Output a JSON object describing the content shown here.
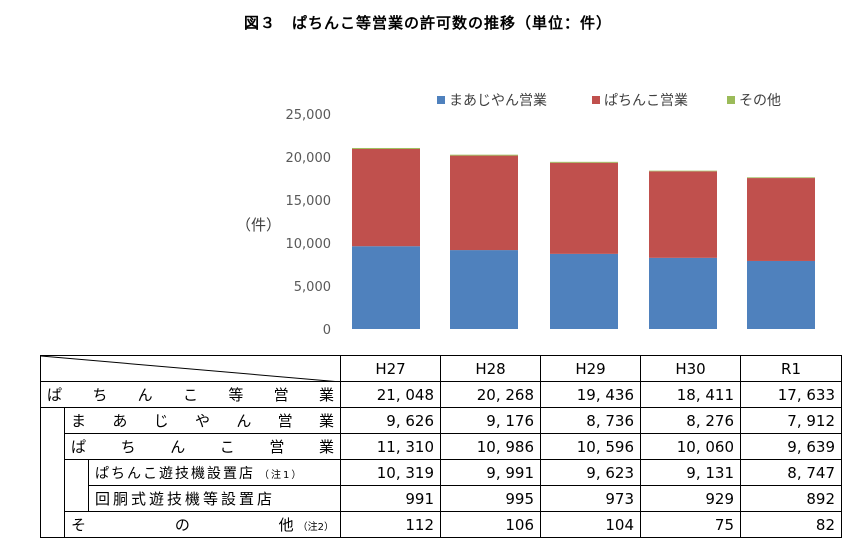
{
  "title": "図３　ぱちんこ等営業の許可数の推移（単位：件）",
  "colors": {
    "mahjong": "#4f81bd",
    "pachinko": "#c0504d",
    "other": "#9bbb59"
  },
  "chart_data": {
    "type": "bar",
    "stacked": true,
    "categories": [
      "H27",
      "H28",
      "H29",
      "H30",
      "R1"
    ],
    "series": [
      {
        "name": "まあじやん営業",
        "values": [
          9626,
          9176,
          8736,
          8276,
          7912
        ]
      },
      {
        "name": "ぱちんこ営業",
        "values": [
          11310,
          10986,
          10596,
          10060,
          9639
        ]
      },
      {
        "name": "その他",
        "values": [
          112,
          106,
          104,
          75,
          82
        ]
      }
    ],
    "ylabel": "（件）",
    "ylim": [
      0,
      25000
    ],
    "yticks": [
      "0",
      "5,000",
      "10,000",
      "15,000",
      "20,000",
      "25,000"
    ],
    "legend": "top",
    "grid": false
  },
  "table": {
    "headers": [
      "H27",
      "H28",
      "H29",
      "H30",
      "R1"
    ],
    "rows": [
      {
        "label_chars": [
          "ぱ",
          "ち",
          "ん",
          "こ",
          "等",
          "営",
          "業"
        ],
        "values": [
          "21, 048",
          "20, 268",
          "19, 436",
          "18, 411",
          "17, 633"
        ]
      },
      {
        "label_chars": [
          "ま",
          "あ",
          "じ",
          "や",
          "ん",
          "営",
          "業"
        ],
        "values": [
          "9, 626",
          "9, 176",
          "8, 736",
          "8, 276",
          "7, 912"
        ]
      },
      {
        "label_chars": [
          "ぱ",
          "ち",
          "ん",
          "こ",
          "営",
          "業"
        ],
        "values": [
          "11, 310",
          "10, 986",
          "10, 596",
          "10, 060",
          "9, 639"
        ]
      },
      {
        "label": "ぱちんこ遊技機設置店",
        "note": "（注1）",
        "values": [
          "10, 319",
          "9, 991",
          "9, 623",
          "9, 131",
          "8, 747"
        ]
      },
      {
        "label": "回胴式遊技機等設置店",
        "values": [
          "991",
          "995",
          "973",
          "929",
          "892"
        ]
      },
      {
        "label_chars": [
          "そ",
          "の",
          "他"
        ],
        "note": "（注2）",
        "values": [
          "112",
          "106",
          "104",
          "75",
          "82"
        ]
      }
    ]
  }
}
